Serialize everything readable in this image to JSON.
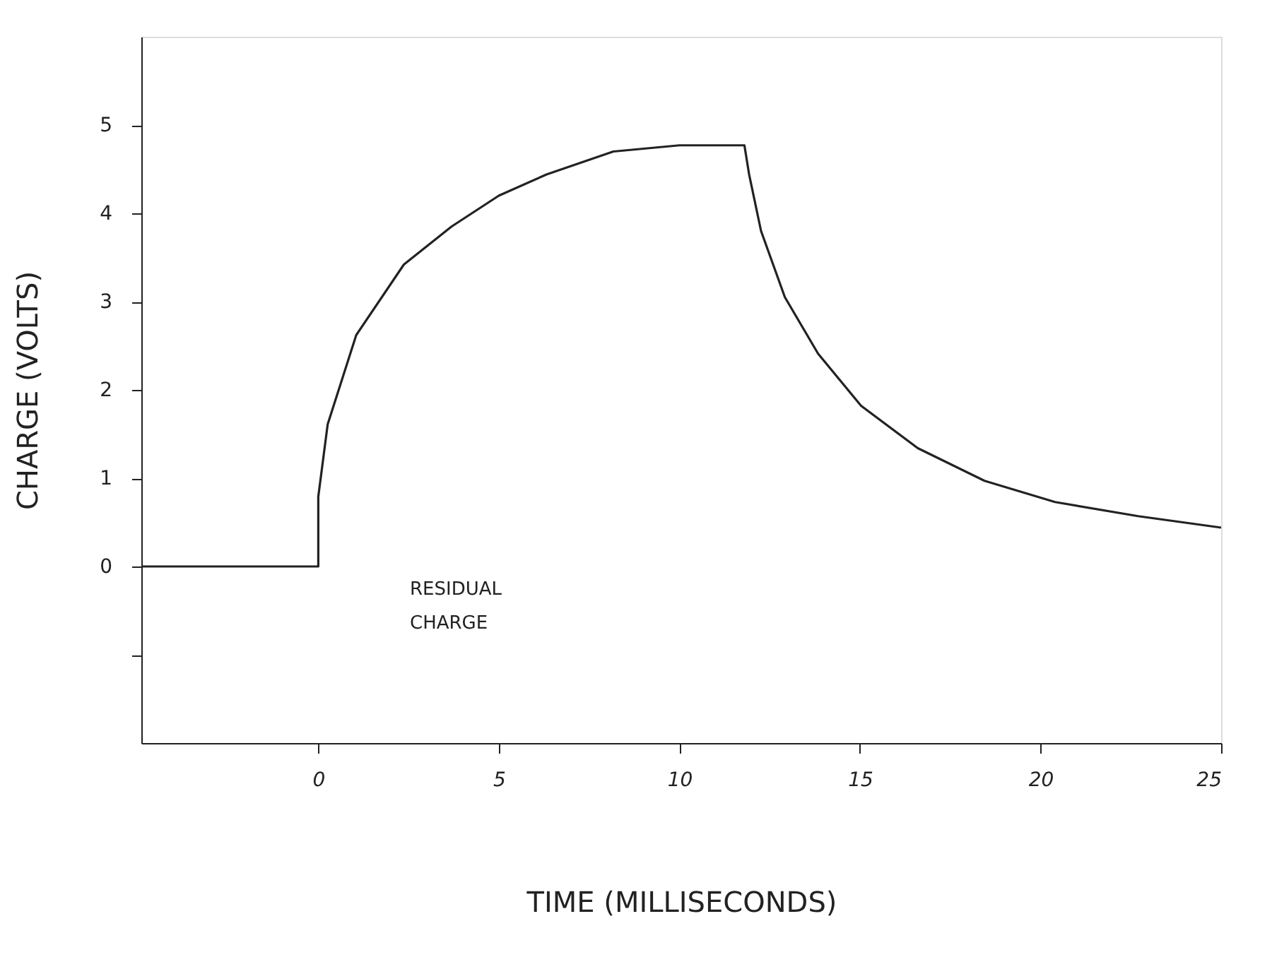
{
  "chart_data": {
    "type": "line",
    "xlabel": "TIME (MILLISECONDS)",
    "ylabel": "CHARGE (VOLTS)",
    "x": [
      -4.9,
      0,
      0,
      0.26,
      1.05,
      2.37,
      3.69,
      5.0,
      6.32,
      8.17,
      10.0,
      11.8,
      11.93,
      12.26,
      12.92,
      13.84,
      15.03,
      16.6,
      18.45,
      20.4,
      22.7,
      25
    ],
    "series": [
      {
        "color": "#222222",
        "values": [
          0,
          0,
          0.79,
          1.61,
          2.62,
          3.42,
          3.85,
          4.2,
          4.44,
          4.7,
          4.77,
          4.77,
          4.44,
          3.8,
          3.05,
          2.41,
          1.82,
          1.34,
          0.97,
          0.73,
          0.57,
          0.44
        ]
      }
    ],
    "xlim": [
      -4.9,
      25
    ],
    "xticks": [
      0,
      5,
      10,
      15,
      20,
      25
    ],
    "ylim": [
      -2,
      6
    ],
    "yticks": [
      {
        "value": -1,
        "label": null
      },
      0,
      1,
      2,
      3,
      4,
      5
    ],
    "annotations": [
      "RESIDUAL CHARGE"
    ],
    "grid": false,
    "marker": "none",
    "line_style": "solid"
  }
}
